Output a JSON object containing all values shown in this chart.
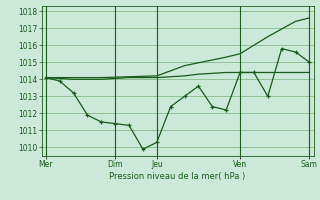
{
  "xlabel": "Pression niveau de la mer( hPa )",
  "background_color": "#cce8d8",
  "grid_color": "#88bb88",
  "line_color": "#1a5c1a",
  "ylim": [
    1009.5,
    1018.3
  ],
  "yticks": [
    1010,
    1011,
    1012,
    1013,
    1014,
    1015,
    1016,
    1017,
    1018
  ],
  "xtick_labels": [
    "Mer",
    "Dim",
    "Jeu",
    "Ven",
    "Sam"
  ],
  "xtick_positions": [
    0,
    5,
    8,
    14,
    19
  ],
  "vlines": [
    0,
    5,
    8,
    14,
    19
  ],
  "line_flat_x": [
    0,
    1,
    2,
    3,
    4,
    5,
    6,
    7,
    8,
    9,
    10,
    11,
    12,
    13,
    14,
    15,
    16,
    17,
    18,
    19
  ],
  "line_flat_y": [
    1014.1,
    1014.05,
    1014.0,
    1014.0,
    1014.0,
    1014.05,
    1014.1,
    1014.1,
    1014.1,
    1014.15,
    1014.2,
    1014.3,
    1014.35,
    1014.4,
    1014.4,
    1014.4,
    1014.4,
    1014.4,
    1014.4,
    1014.4
  ],
  "line_vary_x": [
    0,
    1,
    2,
    3,
    4,
    5,
    6,
    7,
    8,
    9,
    10,
    11,
    12,
    13,
    14,
    15,
    16,
    17,
    18,
    19
  ],
  "line_vary_y": [
    1014.1,
    1013.9,
    1013.2,
    1011.9,
    1011.5,
    1011.4,
    1011.3,
    1009.9,
    1010.3,
    1012.4,
    1013.0,
    1013.6,
    1012.4,
    1012.2,
    1014.4,
    1014.4,
    1013.0,
    1015.8,
    1015.6,
    1015.0
  ],
  "line_rise_x": [
    0,
    4,
    8,
    10,
    13,
    14,
    16,
    18,
    19
  ],
  "line_rise_y": [
    1014.1,
    1014.1,
    1014.2,
    1014.8,
    1015.3,
    1015.5,
    1016.5,
    1017.4,
    1017.6
  ]
}
